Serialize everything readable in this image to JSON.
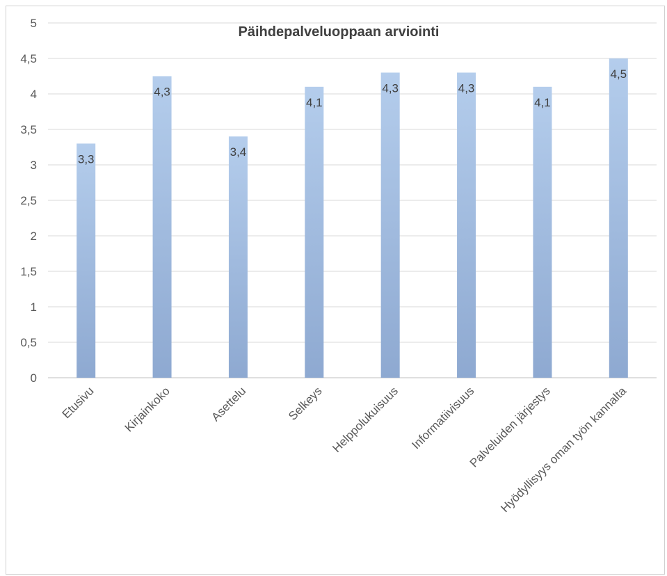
{
  "chart_data": {
    "type": "bar",
    "title": "Päihdepalveluoppaan arviointi",
    "categories": [
      "Etusivu",
      "Kirjainkoko",
      "Asettelu",
      "Selkeys",
      "Helppolukuisuus",
      "Informatiivisuus",
      "Palveluiden järjestys",
      "Hyödyllisyys oman työn kannalta"
    ],
    "values": [
      3.3,
      4.25,
      3.4,
      4.1,
      4.3,
      4.3,
      4.1,
      4.5
    ],
    "data_labels": [
      "3,3",
      "4,3",
      "3,4",
      "4,1",
      "4,3",
      "4,3",
      "4,1",
      "4,5"
    ],
    "ylim": [
      0,
      5
    ],
    "y_ticks": [
      0,
      0.5,
      1,
      1.5,
      2,
      2.5,
      3,
      3.5,
      4,
      4.5,
      5
    ],
    "y_tick_labels": [
      "0",
      "0,5",
      "1",
      "1,5",
      "2",
      "2,5",
      "3",
      "3,5",
      "4",
      "4,5",
      "5"
    ],
    "grid": true,
    "legend": "none",
    "bar_color_top": "#b4cdec",
    "bar_color_bottom": "#8ea9d1"
  }
}
